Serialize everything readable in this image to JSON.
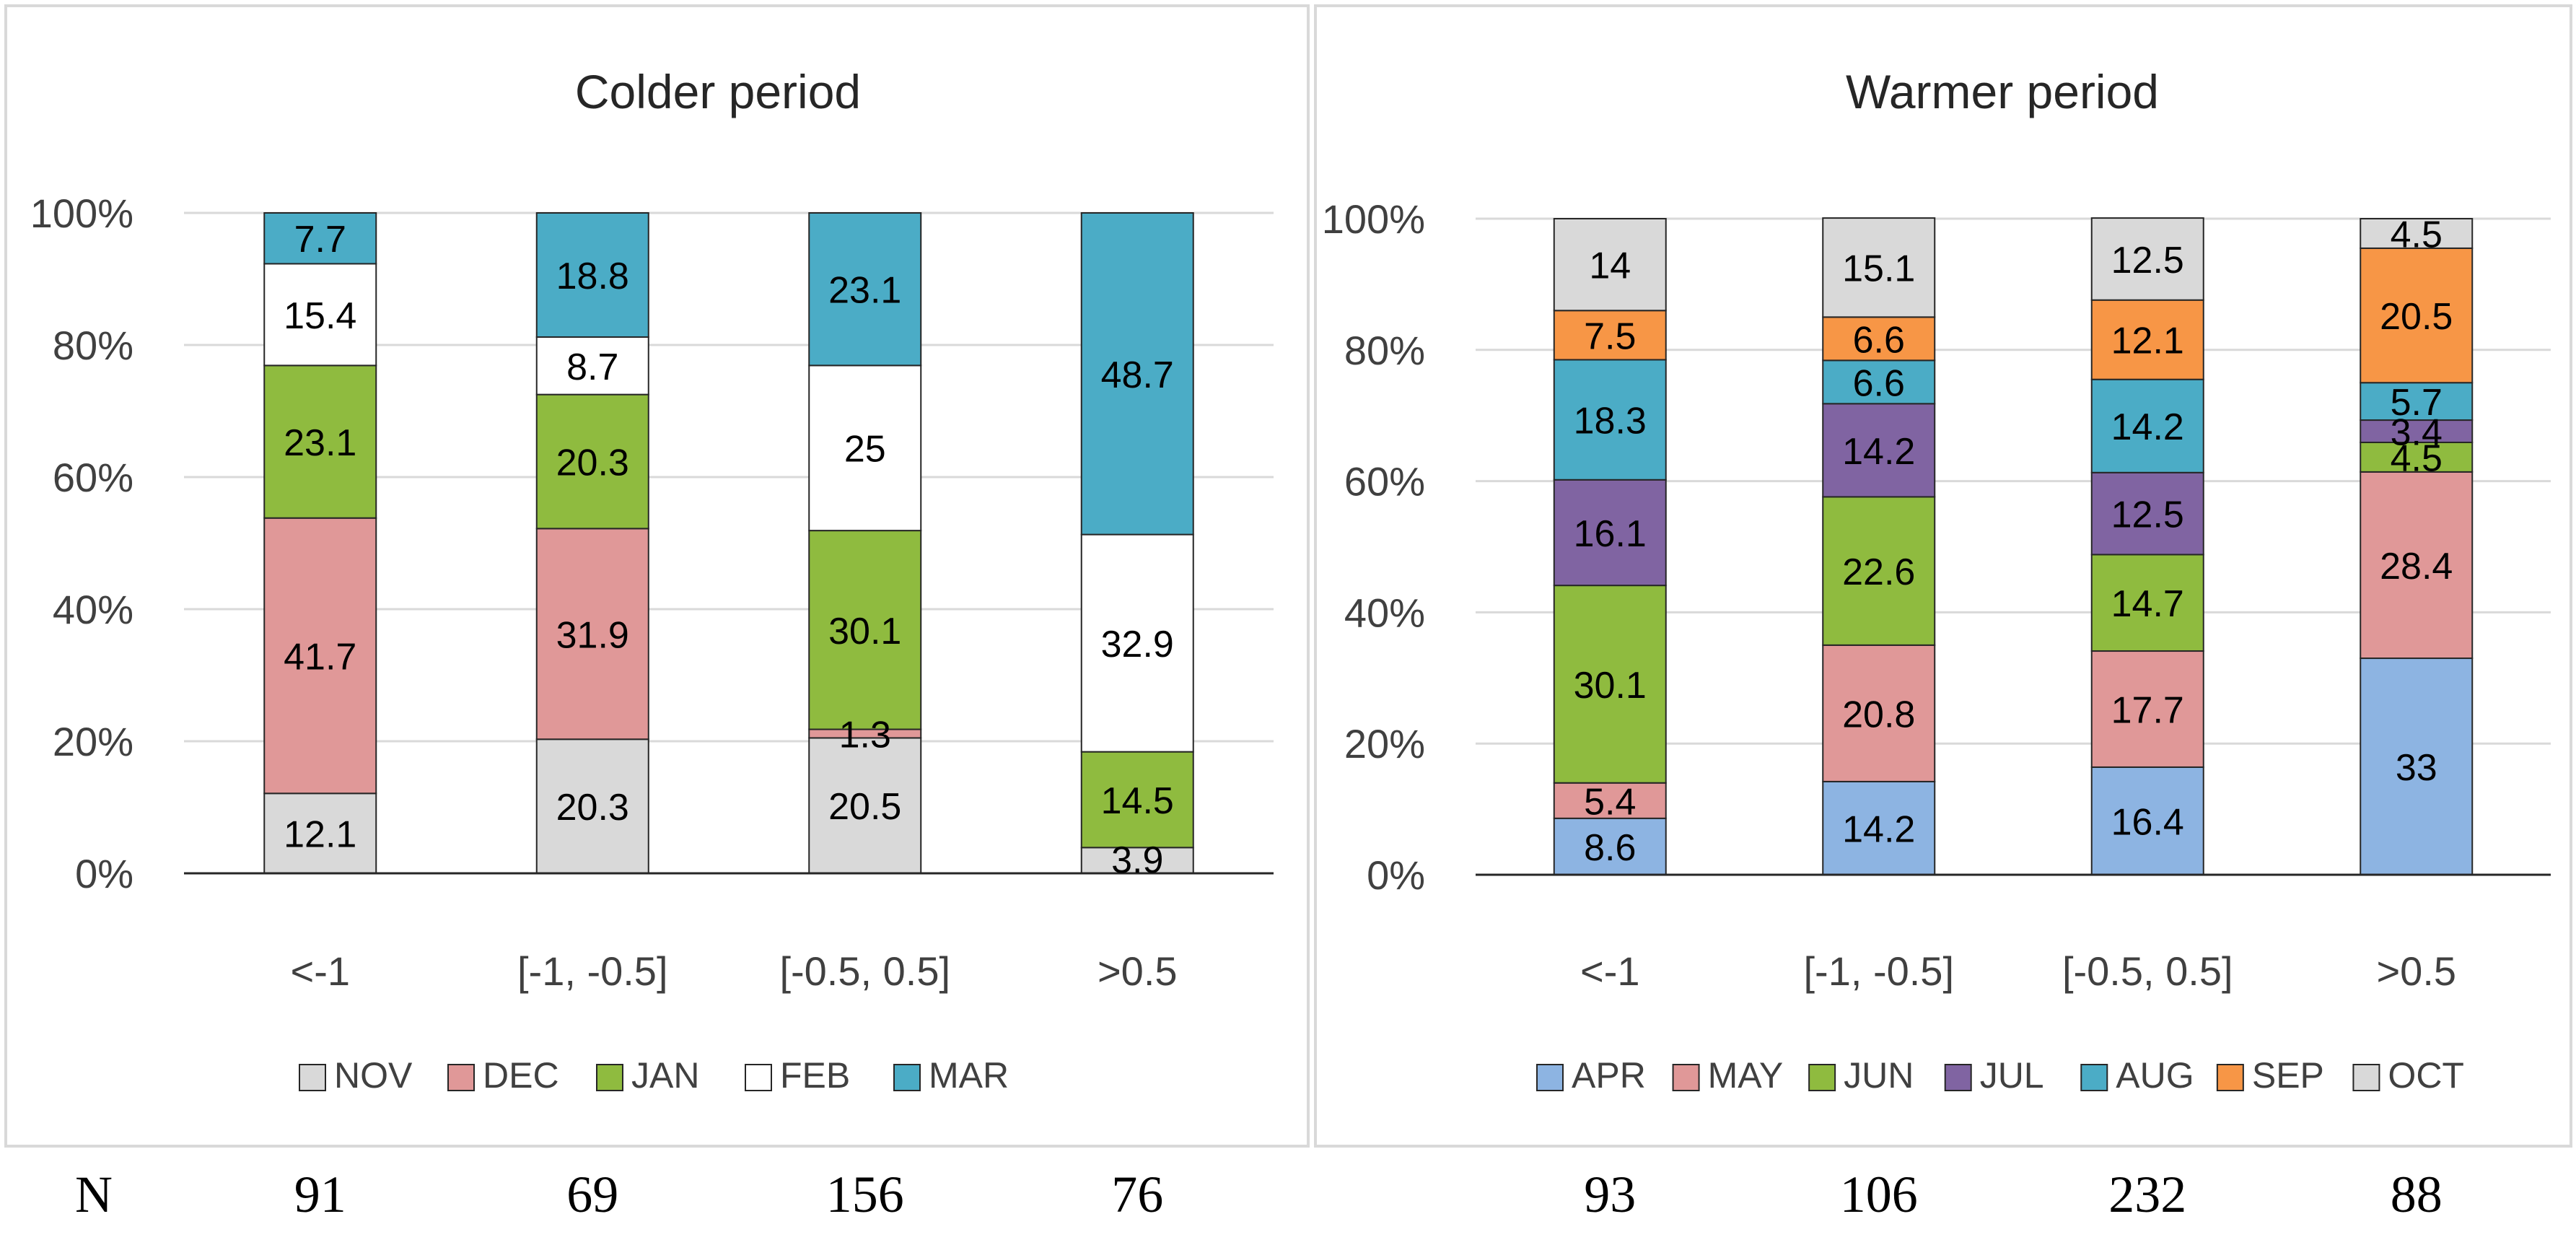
{
  "n_label": "N",
  "chart_data": [
    {
      "type": "bar",
      "stacked": true,
      "percent": true,
      "title": "Colder period",
      "categories": [
        "<-1",
        "[-1, -0.5]",
        "[-0.5, 0.5]",
        ">0.5"
      ],
      "n_values": [
        "91",
        "69",
        "156",
        "76"
      ],
      "yticks": [
        "0%",
        "20%",
        "40%",
        "60%",
        "80%",
        "100%"
      ],
      "ylim": [
        0,
        100
      ],
      "legend_position": "bottom",
      "series": [
        {
          "name": "NOV",
          "color": "#d9d9d9",
          "label_color": "#000000",
          "values": [
            12.1,
            20.3,
            20.5,
            3.9
          ],
          "labels": [
            "12.1",
            "20.3",
            "20.5",
            "3.9"
          ]
        },
        {
          "name": "DEC",
          "color": "#e09898",
          "label_color": "#000000",
          "values": [
            41.7,
            31.9,
            1.3,
            0
          ],
          "labels": [
            "41.7",
            "31.9",
            "1.3",
            ""
          ]
        },
        {
          "name": "JAN",
          "color": "#8fbb3f",
          "label_color": "#000000",
          "values": [
            23.1,
            20.3,
            30.1,
            14.5
          ],
          "labels": [
            "23.1",
            "20.3",
            "30.1",
            "14.5"
          ]
        },
        {
          "name": "FEB",
          "color": "#ffffff",
          "label_color": "#000000",
          "values": [
            15.4,
            8.7,
            25,
            32.9
          ],
          "labels": [
            "15.4",
            "8.7",
            "25",
            "32.9"
          ]
        },
        {
          "name": "MAR",
          "color": "#4bacc6",
          "label_color": "#000000",
          "values": [
            7.7,
            18.8,
            23.1,
            48.7
          ],
          "labels": [
            "7.7",
            "18.8",
            "23.1",
            "48.7"
          ]
        }
      ]
    },
    {
      "type": "bar",
      "stacked": true,
      "percent": true,
      "title": "Warmer period",
      "categories": [
        "<-1",
        "[-1, -0.5]",
        "[-0.5, 0.5]",
        ">0.5"
      ],
      "n_values": [
        "93",
        "106",
        "232",
        "88"
      ],
      "yticks": [
        "0%",
        "20%",
        "40%",
        "60%",
        "80%",
        "100%"
      ],
      "ylim": [
        0,
        100
      ],
      "legend_position": "bottom",
      "series": [
        {
          "name": "APR",
          "color": "#8db4e2",
          "label_color": "#000000",
          "values": [
            8.6,
            14.2,
            16.4,
            33
          ],
          "labels": [
            "8.6",
            "14.2",
            "16.4",
            "33"
          ]
        },
        {
          "name": "MAY",
          "color": "#e09898",
          "label_color": "#000000",
          "values": [
            5.4,
            20.8,
            17.7,
            28.4
          ],
          "labels": [
            "5.4",
            "20.8",
            "17.7",
            "28.4"
          ]
        },
        {
          "name": "JUN",
          "color": "#8fbb3f",
          "label_color": "#000000",
          "values": [
            30.1,
            22.6,
            14.7,
            4.5
          ],
          "labels": [
            "30.1",
            "22.6",
            "14.7",
            "4.5"
          ]
        },
        {
          "name": "JUL",
          "color": "#8064a2",
          "label_color": "#000000",
          "values": [
            16.1,
            14.2,
            12.5,
            3.4
          ],
          "labels": [
            "16.1",
            "14.2",
            "12.5",
            "3.4"
          ]
        },
        {
          "name": "AUG",
          "color": "#4bacc6",
          "label_color": "#000000",
          "values": [
            18.3,
            6.6,
            14.2,
            5.7
          ],
          "labels": [
            "18.3",
            "6.6",
            "14.2",
            "5.7"
          ]
        },
        {
          "name": "SEP",
          "color": "#f79646",
          "label_color": "#000000",
          "values": [
            7.5,
            6.6,
            12.1,
            20.5
          ],
          "labels": [
            "7.5",
            "6.6",
            "12.1",
            "20.5"
          ]
        },
        {
          "name": "OCT",
          "color": "#d9d9d9",
          "label_color": "#000000",
          "values": [
            14,
            15.1,
            12.5,
            4.5
          ],
          "labels": [
            "14",
            "15.1",
            "12.5",
            "4.5"
          ]
        }
      ]
    }
  ]
}
